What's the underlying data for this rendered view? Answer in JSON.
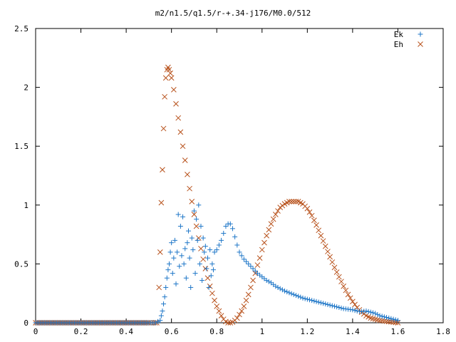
{
  "chart_data": {
    "type": "scatter",
    "title": "m2/n1.5/q1.5/r-+.34-j176/M0.0/512",
    "xlabel": "",
    "ylabel": "",
    "xlim": [
      0,
      1.8
    ],
    "ylim": [
      0,
      2.5
    ],
    "x_ticks": [
      "0",
      "0.2",
      "0.4",
      "0.6",
      "0.8",
      "1",
      "1.2",
      "1.4",
      "1.6",
      "1.8"
    ],
    "y_ticks": [
      "0",
      "0.5",
      "1",
      "1.5",
      "2",
      "2.5"
    ],
    "legend_position": "top-right",
    "series": [
      {
        "name": "Ek",
        "marker": "plus",
        "color": "#1f77c8",
        "x": [
          0.0,
          0.05,
          0.1,
          0.15,
          0.2,
          0.25,
          0.3,
          0.35,
          0.4,
          0.45,
          0.5,
          0.53,
          0.55,
          0.555,
          0.56,
          0.565,
          0.57,
          0.575,
          0.58,
          0.585,
          0.59,
          0.595,
          0.6,
          0.605,
          0.61,
          0.615,
          0.62,
          0.625,
          0.63,
          0.635,
          0.64,
          0.645,
          0.65,
          0.655,
          0.66,
          0.665,
          0.67,
          0.675,
          0.68,
          0.685,
          0.69,
          0.695,
          0.7,
          0.705,
          0.71,
          0.715,
          0.72,
          0.725,
          0.73,
          0.735,
          0.74,
          0.745,
          0.75,
          0.755,
          0.76,
          0.765,
          0.77,
          0.775,
          0.78,
          0.785,
          0.79,
          0.8,
          0.81,
          0.82,
          0.83,
          0.84,
          0.85,
          0.86,
          0.87,
          0.88,
          0.89,
          0.9,
          0.92,
          0.94,
          0.96,
          0.98,
          1.0,
          1.02,
          1.04,
          1.06,
          1.08,
          1.1,
          1.12,
          1.14,
          1.16,
          1.18,
          1.2,
          1.22,
          1.24,
          1.26,
          1.28,
          1.3,
          1.32,
          1.34,
          1.36,
          1.38,
          1.4,
          1.42,
          1.44,
          1.46,
          1.48,
          1.5,
          1.52,
          1.54,
          1.56,
          1.58,
          1.6
        ],
        "y": [
          0,
          0,
          0,
          0,
          0,
          0,
          0,
          0,
          0,
          0,
          0,
          0,
          0.02,
          0.06,
          0.1,
          0.16,
          0.22,
          0.3,
          0.38,
          0.45,
          0.5,
          0.6,
          0.68,
          0.42,
          0.55,
          0.7,
          0.33,
          0.6,
          0.92,
          0.48,
          0.82,
          0.57,
          0.9,
          0.5,
          0.63,
          0.38,
          0.68,
          0.78,
          0.55,
          0.3,
          0.72,
          0.62,
          0.95,
          0.42,
          0.88,
          0.7,
          1.0,
          0.5,
          0.82,
          0.36,
          0.72,
          0.6,
          0.65,
          0.46,
          0.55,
          0.3,
          0.62,
          0.4,
          0.5,
          0.45,
          0.6,
          0.62,
          0.66,
          0.7,
          0.76,
          0.82,
          0.84,
          0.84,
          0.8,
          0.73,
          0.66,
          0.6,
          0.54,
          0.5,
          0.46,
          0.42,
          0.39,
          0.36,
          0.34,
          0.31,
          0.29,
          0.27,
          0.255,
          0.24,
          0.225,
          0.21,
          0.2,
          0.19,
          0.18,
          0.17,
          0.16,
          0.15,
          0.14,
          0.13,
          0.12,
          0.115,
          0.11,
          0.1,
          0.095,
          0.1,
          0.09,
          0.08,
          0.06,
          0.05,
          0.04,
          0.03,
          0.02
        ]
      },
      {
        "name": "Eh",
        "marker": "cross",
        "color": "#b8521c",
        "x": [
          0.0,
          0.05,
          0.1,
          0.15,
          0.2,
          0.25,
          0.3,
          0.35,
          0.4,
          0.45,
          0.5,
          0.52,
          0.535,
          0.545,
          0.55,
          0.555,
          0.56,
          0.565,
          0.57,
          0.575,
          0.58,
          0.585,
          0.59,
          0.595,
          0.6,
          0.61,
          0.62,
          0.63,
          0.64,
          0.65,
          0.66,
          0.67,
          0.68,
          0.69,
          0.7,
          0.71,
          0.72,
          0.73,
          0.74,
          0.75,
          0.76,
          0.77,
          0.78,
          0.79,
          0.8,
          0.81,
          0.82,
          0.83,
          0.84,
          0.85,
          0.86,
          0.87,
          0.88,
          0.89,
          0.9,
          0.91,
          0.92,
          0.93,
          0.94,
          0.95,
          0.96,
          0.97,
          0.98,
          0.99,
          1.0,
          1.02,
          1.04,
          1.06,
          1.08,
          1.1,
          1.12,
          1.14,
          1.16,
          1.18,
          1.2,
          1.22,
          1.24,
          1.26,
          1.28,
          1.3,
          1.32,
          1.34,
          1.36,
          1.38,
          1.4,
          1.42,
          1.44,
          1.46,
          1.48,
          1.5,
          1.52,
          1.54,
          1.56,
          1.58,
          1.6
        ],
        "y": [
          0,
          0,
          0,
          0,
          0,
          0,
          0,
          0,
          0,
          0,
          0,
          0,
          0,
          0.3,
          0.6,
          1.02,
          1.3,
          1.65,
          1.92,
          2.08,
          2.15,
          2.17,
          2.15,
          2.12,
          2.08,
          1.98,
          1.86,
          1.74,
          1.62,
          1.5,
          1.38,
          1.26,
          1.14,
          1.03,
          0.92,
          0.82,
          0.72,
          0.63,
          0.54,
          0.46,
          0.38,
          0.31,
          0.25,
          0.19,
          0.14,
          0.1,
          0.06,
          0.03,
          0.01,
          0.0,
          0.0,
          0.005,
          0.02,
          0.04,
          0.07,
          0.1,
          0.14,
          0.19,
          0.24,
          0.3,
          0.36,
          0.42,
          0.49,
          0.55,
          0.62,
          0.74,
          0.84,
          0.92,
          0.98,
          1.01,
          1.03,
          1.03,
          1.03,
          1.01,
          0.97,
          0.91,
          0.83,
          0.74,
          0.65,
          0.56,
          0.47,
          0.39,
          0.31,
          0.24,
          0.18,
          0.13,
          0.09,
          0.06,
          0.04,
          0.03,
          0.02,
          0.015,
          0.01,
          0.005,
          0.0
        ]
      }
    ]
  }
}
